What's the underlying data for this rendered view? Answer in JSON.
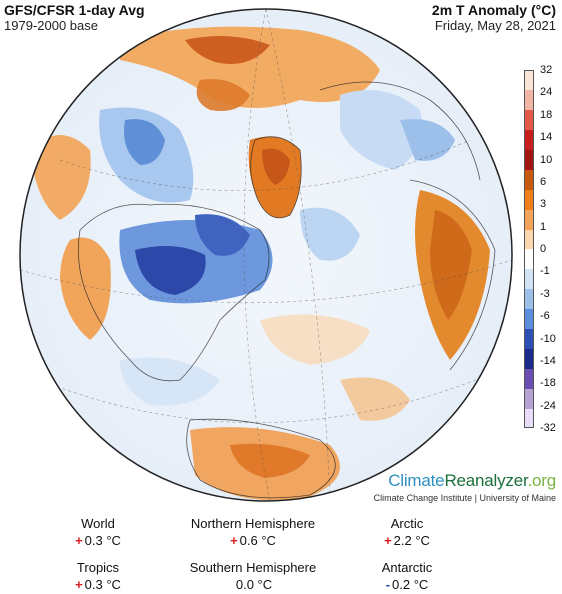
{
  "header": {
    "title_left": "GFS/CFSR 1-day Avg",
    "sub_left": "1979-2000 base",
    "title_right": "2m T Anomaly (°C)",
    "sub_right": "Friday, May 28, 2021"
  },
  "colorbar": {
    "labels": [
      "32",
      "24",
      "18",
      "14",
      "10",
      "6",
      "3",
      "1",
      "0",
      "-1",
      "-3",
      "-6",
      "-10",
      "-14",
      "-18",
      "-24",
      "-32"
    ],
    "colors": [
      "#fbe5d8",
      "#f3b6a6",
      "#e45a4a",
      "#c71f1f",
      "#a31515",
      "#c85a10",
      "#ef7f1a",
      "#f4a45a",
      "#fbd6ac",
      "#ffffff",
      "#d4e4f6",
      "#9cc0ea",
      "#5d8ddd",
      "#2e4fb3",
      "#1c2a8a",
      "#6a4fb0",
      "#b7a2d6",
      "#e8defa"
    ]
  },
  "brand": {
    "part1": "Climate",
    "part2": "Reanalyzer",
    "part3": ".org",
    "sub": "Climate Change Institute | University of Maine"
  },
  "stats": [
    {
      "name": "World",
      "sign": "+",
      "value": "0.3 °C",
      "sign_color": "#d62020"
    },
    {
      "name": "Northern Hemisphere",
      "sign": "+",
      "value": "0.6 °C",
      "sign_color": "#d62020"
    },
    {
      "name": "Arctic",
      "sign": "+",
      "value": "2.2 °C",
      "sign_color": "#d62020"
    },
    {
      "name": "Tropics",
      "sign": "+",
      "value": "0.3 °C",
      "sign_color": "#d62020"
    },
    {
      "name": "Southern Hemisphere",
      "sign": "",
      "value": "0.0 °C",
      "sign_color": "#111111"
    },
    {
      "name": "Antarctic",
      "sign": "-",
      "value": "0.2 °C",
      "sign_color": "#2a3fb0"
    }
  ]
}
